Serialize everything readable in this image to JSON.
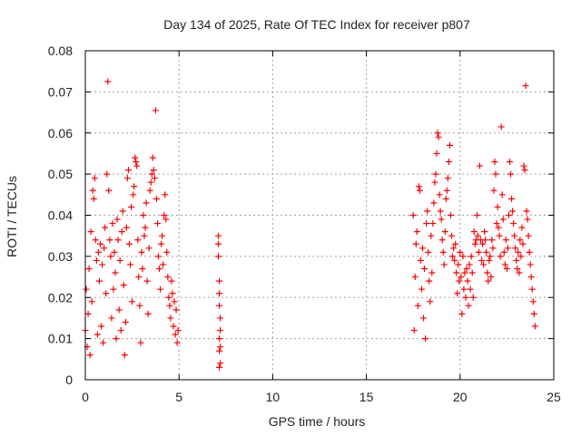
{
  "chart_data": {
    "type": "scatter",
    "title": "Day 134 of 2025, Rate Of TEC Index for receiver p807",
    "xlabel": "GPS time / hours",
    "ylabel": "ROTI / TECUs",
    "xlim": [
      0,
      25
    ],
    "ylim": [
      0,
      0.08
    ],
    "xticks": [
      0,
      5,
      10,
      15,
      20,
      25
    ],
    "xtick_labels": [
      "0",
      "5",
      "10",
      "15",
      "20",
      "25"
    ],
    "yticks": [
      0,
      0.01,
      0.02,
      0.03,
      0.04,
      0.05,
      0.06,
      0.07,
      0.08
    ],
    "ytick_labels": [
      "0",
      "0.01",
      "0.02",
      "0.03",
      "0.04",
      "0.05",
      "0.06",
      "0.07",
      "0.08"
    ],
    "grid": true,
    "legend": "none",
    "marker": "plus",
    "color": "#ff0000",
    "series": [
      {
        "points": [
          [
            0.0,
            0.012
          ],
          [
            0.05,
            0.022
          ],
          [
            0.1,
            0.008
          ],
          [
            0.15,
            0.016
          ],
          [
            0.2,
            0.027
          ],
          [
            0.25,
            0.006
          ],
          [
            0.3,
            0.036
          ],
          [
            0.35,
            0.019
          ],
          [
            0.4,
            0.046
          ],
          [
            0.45,
            0.044
          ],
          [
            0.5,
            0.049
          ],
          [
            0.55,
            0.034
          ],
          [
            0.6,
            0.029
          ],
          [
            0.65,
            0.011
          ],
          [
            0.7,
            0.031
          ],
          [
            0.75,
            0.024
          ],
          [
            0.8,
            0.033
          ],
          [
            0.85,
            0.013
          ],
          [
            0.9,
            0.028
          ],
          [
            0.95,
            0.009
          ],
          [
            1.0,
            0.032
          ],
          [
            1.05,
            0.037
          ],
          [
            1.1,
            0.021
          ],
          [
            1.15,
            0.05
          ],
          [
            1.2,
            0.0725
          ],
          [
            1.25,
            0.046
          ],
          [
            1.3,
            0.034
          ],
          [
            1.35,
            0.03
          ],
          [
            1.4,
            0.015
          ],
          [
            1.45,
            0.038
          ],
          [
            1.5,
            0.022
          ],
          [
            1.55,
            0.031
          ],
          [
            1.6,
            0.026
          ],
          [
            1.65,
            0.01
          ],
          [
            1.7,
            0.039
          ],
          [
            1.75,
            0.034
          ],
          [
            1.8,
            0.017
          ],
          [
            1.85,
            0.029
          ],
          [
            1.9,
            0.012
          ],
          [
            1.95,
            0.036
          ],
          [
            2.0,
            0.041
          ],
          [
            2.05,
            0.023
          ],
          [
            2.1,
            0.006
          ],
          [
            2.15,
            0.014
          ],
          [
            2.2,
            0.037
          ],
          [
            2.25,
            0.049
          ],
          [
            2.3,
            0.051
          ],
          [
            2.35,
            0.033
          ],
          [
            2.4,
            0.028
          ],
          [
            2.45,
            0.042
          ],
          [
            2.5,
            0.019
          ],
          [
            2.55,
            0.045
          ],
          [
            2.6,
            0.047
          ],
          [
            2.65,
            0.054
          ],
          [
            2.7,
            0.053
          ],
          [
            2.75,
            0.052
          ],
          [
            2.8,
            0.034
          ],
          [
            2.85,
            0.025
          ],
          [
            2.9,
            0.018
          ],
          [
            2.95,
            0.009
          ],
          [
            3.0,
            0.031
          ],
          [
            3.05,
            0.027
          ],
          [
            3.1,
            0.04
          ],
          [
            3.15,
            0.035
          ],
          [
            3.2,
            0.037
          ],
          [
            3.25,
            0.043
          ],
          [
            3.3,
            0.024
          ],
          [
            3.35,
            0.016
          ],
          [
            3.4,
            0.032
          ],
          [
            3.45,
            0.046
          ],
          [
            3.5,
            0.048
          ],
          [
            3.55,
            0.05
          ],
          [
            3.6,
            0.054
          ],
          [
            3.65,
            0.051
          ],
          [
            3.7,
            0.049
          ],
          [
            3.75,
            0.0655
          ],
          [
            3.8,
            0.044
          ],
          [
            3.85,
            0.038
          ],
          [
            3.9,
            0.03
          ],
          [
            3.95,
            0.027
          ],
          [
            4.0,
            0.022
          ],
          [
            4.05,
            0.033
          ],
          [
            4.1,
            0.035
          ],
          [
            4.15,
            0.028
          ],
          [
            4.2,
            0.04
          ],
          [
            4.25,
            0.045
          ],
          [
            4.3,
            0.039
          ],
          [
            4.35,
            0.031
          ],
          [
            4.4,
            0.025
          ],
          [
            4.45,
            0.02
          ],
          [
            4.5,
            0.018
          ],
          [
            4.55,
            0.015
          ],
          [
            4.6,
            0.024
          ],
          [
            4.65,
            0.021
          ],
          [
            4.7,
            0.013
          ],
          [
            4.75,
            0.019
          ],
          [
            4.8,
            0.011
          ],
          [
            4.85,
            0.017
          ],
          [
            4.9,
            0.009
          ],
          [
            4.95,
            0.012
          ],
          [
            7.1,
            0.035
          ],
          [
            7.1,
            0.033
          ],
          [
            7.1,
            0.03
          ],
          [
            7.15,
            0.024
          ],
          [
            7.15,
            0.021
          ],
          [
            7.15,
            0.018
          ],
          [
            7.2,
            0.015
          ],
          [
            7.2,
            0.012
          ],
          [
            7.15,
            0.01
          ],
          [
            7.2,
            0.008
          ],
          [
            7.15,
            0.007
          ],
          [
            7.2,
            0.004
          ],
          [
            7.15,
            0.003
          ],
          [
            17.5,
            0.04
          ],
          [
            17.55,
            0.012
          ],
          [
            17.6,
            0.025
          ],
          [
            17.65,
            0.033
          ],
          [
            17.7,
            0.036
          ],
          [
            17.75,
            0.018
          ],
          [
            17.8,
            0.047
          ],
          [
            17.85,
            0.046
          ],
          [
            17.9,
            0.029
          ],
          [
            17.95,
            0.022
          ],
          [
            18.0,
            0.032
          ],
          [
            18.05,
            0.015
          ],
          [
            18.1,
            0.027
          ],
          [
            18.15,
            0.01
          ],
          [
            18.2,
            0.038
          ],
          [
            18.25,
            0.041
          ],
          [
            18.3,
            0.031
          ],
          [
            18.35,
            0.024
          ],
          [
            18.4,
            0.019
          ],
          [
            18.45,
            0.035
          ],
          [
            18.5,
            0.026
          ],
          [
            18.55,
            0.038
          ],
          [
            18.6,
            0.043
          ],
          [
            18.65,
            0.048
          ],
          [
            18.7,
            0.05
          ],
          [
            18.75,
            0.055
          ],
          [
            18.8,
            0.06
          ],
          [
            18.85,
            0.059
          ],
          [
            18.9,
            0.045
          ],
          [
            18.95,
            0.041
          ],
          [
            19.0,
            0.039
          ],
          [
            19.05,
            0.034
          ],
          [
            19.1,
            0.031
          ],
          [
            19.15,
            0.028
          ],
          [
            19.2,
            0.036
          ],
          [
            19.25,
            0.044
          ],
          [
            19.3,
            0.046
          ],
          [
            19.35,
            0.049
          ],
          [
            19.4,
            0.053
          ],
          [
            19.45,
            0.057
          ],
          [
            19.5,
            0.04
          ],
          [
            19.55,
            0.035
          ],
          [
            19.6,
            0.03
          ],
          [
            19.65,
            0.032
          ],
          [
            19.7,
            0.029
          ],
          [
            19.75,
            0.033
          ],
          [
            19.8,
            0.026
          ],
          [
            19.85,
            0.021
          ],
          [
            19.9,
            0.028
          ],
          [
            19.95,
            0.024
          ],
          [
            20.0,
            0.031
          ],
          [
            20.05,
            0.025
          ],
          [
            20.1,
            0.016
          ],
          [
            20.15,
            0.03
          ],
          [
            20.2,
            0.022
          ],
          [
            20.25,
            0.026
          ],
          [
            20.3,
            0.02
          ],
          [
            20.35,
            0.027
          ],
          [
            20.4,
            0.024
          ],
          [
            20.45,
            0.018
          ],
          [
            20.5,
            0.028
          ],
          [
            20.55,
            0.022
          ],
          [
            20.6,
            0.03
          ],
          [
            20.65,
            0.026
          ],
          [
            20.7,
            0.02
          ],
          [
            20.75,
            0.036
          ],
          [
            20.8,
            0.033
          ],
          [
            20.85,
            0.034
          ],
          [
            20.9,
            0.04
          ],
          [
            20.95,
            0.035
          ],
          [
            21.0,
            0.031
          ],
          [
            21.05,
            0.052
          ],
          [
            21.1,
            0.034
          ],
          [
            21.15,
            0.029
          ],
          [
            21.2,
            0.033
          ],
          [
            21.25,
            0.028
          ],
          [
            21.3,
            0.036
          ],
          [
            21.35,
            0.034
          ],
          [
            21.4,
            0.031
          ],
          [
            21.45,
            0.026
          ],
          [
            21.5,
            0.024
          ],
          [
            21.55,
            0.029
          ],
          [
            21.6,
            0.03
          ],
          [
            21.65,
            0.025
          ],
          [
            21.7,
            0.034
          ],
          [
            21.75,
            0.032
          ],
          [
            21.8,
            0.046
          ],
          [
            21.85,
            0.053
          ],
          [
            21.9,
            0.05
          ],
          [
            21.95,
            0.038
          ],
          [
            22.0,
            0.042
          ],
          [
            22.05,
            0.037
          ],
          [
            22.1,
            0.035
          ],
          [
            22.15,
            0.03
          ],
          [
            22.2,
            0.0615
          ],
          [
            22.25,
            0.045
          ],
          [
            22.3,
            0.039
          ],
          [
            22.35,
            0.031
          ],
          [
            22.4,
            0.028
          ],
          [
            22.45,
            0.034
          ],
          [
            22.5,
            0.027
          ],
          [
            22.55,
            0.032
          ],
          [
            22.6,
            0.04
          ],
          [
            22.65,
            0.053
          ],
          [
            22.7,
            0.05
          ],
          [
            22.75,
            0.044
          ],
          [
            22.8,
            0.041
          ],
          [
            22.85,
            0.038
          ],
          [
            22.9,
            0.035
          ],
          [
            22.95,
            0.032
          ],
          [
            23.0,
            0.029
          ],
          [
            23.05,
            0.027
          ],
          [
            23.1,
            0.031
          ],
          [
            23.15,
            0.026
          ],
          [
            23.2,
            0.034
          ],
          [
            23.25,
            0.03
          ],
          [
            23.3,
            0.037
          ],
          [
            23.35,
            0.033
          ],
          [
            23.4,
            0.052
          ],
          [
            23.45,
            0.051
          ],
          [
            23.5,
            0.0715
          ],
          [
            23.55,
            0.041
          ],
          [
            23.6,
            0.039
          ],
          [
            23.65,
            0.035
          ],
          [
            23.7,
            0.031
          ],
          [
            23.75,
            0.028
          ],
          [
            23.8,
            0.025
          ],
          [
            23.85,
            0.022
          ],
          [
            23.9,
            0.019
          ],
          [
            23.95,
            0.016
          ],
          [
            24.0,
            0.013
          ]
        ]
      }
    ]
  }
}
